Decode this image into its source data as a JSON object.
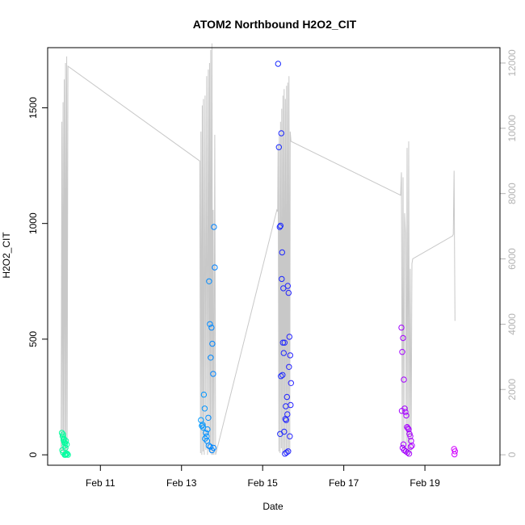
{
  "chart_data": {
    "type": "scatter",
    "title": "ATOM2 Northbound H2O2_CIT",
    "xlabel": "Date",
    "ylabel": "H2O2_CIT",
    "x_ticks": [
      "Feb 11",
      "Feb 13",
      "Feb 15",
      "Feb 17",
      "Feb 19"
    ],
    "y_ticks": [
      "0",
      "500",
      "1000",
      "1500"
    ],
    "y2_ticks": [
      "0",
      "2000",
      "4000",
      "6000",
      "8000",
      "10000",
      "12000"
    ],
    "xlim": [
      9.7,
      20.85
    ],
    "ylim": [
      -45,
      1760
    ],
    "y2lim": [
      -320,
      12470
    ],
    "colors": {
      "scatter_gradient": [
        "#00ff99",
        "#00e5ff",
        "#0033ff",
        "#7a00ff",
        "#d400ff"
      ],
      "altitude_line": "#c8c8c8",
      "right_axis": "#b3b3b3"
    },
    "series": [
      {
        "x": [
          10.05,
          10.07,
          10.09,
          10.11,
          10.13,
          10.15,
          10.17,
          10.06,
          10.08,
          10.12,
          10.14,
          10.16,
          10.08,
          10.1,
          10.12,
          10.14,
          10.18,
          10.2
        ],
        "y": [
          95,
          80,
          65,
          55,
          50,
          60,
          45,
          20,
          10,
          0,
          0,
          2,
          88,
          70,
          40,
          30,
          5,
          0
        ]
      },
      {
        "x": [
          13.48,
          13.5,
          13.52,
          13.55,
          13.57,
          13.6,
          13.62,
          13.64,
          13.66,
          13.68,
          13.7,
          13.72,
          13.74,
          13.76,
          13.78,
          13.8,
          13.82,
          13.53,
          13.58,
          13.63,
          13.67,
          13.71,
          13.75,
          13.79
        ],
        "y": [
          150,
          125,
          130,
          260,
          200,
          95,
          80,
          110,
          160,
          750,
          565,
          420,
          550,
          480,
          350,
          985,
          810,
          118,
          70,
          60,
          40,
          35,
          20,
          30
        ]
      },
      {
        "x": [
          15.38,
          15.4,
          15.42,
          15.44,
          15.46,
          15.48,
          15.5,
          15.52,
          15.54,
          15.56,
          15.58,
          15.6,
          15.62,
          15.64,
          15.66,
          15.68,
          15.7,
          15.45,
          15.49,
          15.53,
          15.57,
          15.61,
          15.65,
          15.69,
          15.43,
          15.47,
          15.51,
          15.55,
          15.59,
          15.63,
          15.67
        ],
        "y": [
          1690,
          1330,
          985,
          990,
          1390,
          875,
          485,
          440,
          485,
          155,
          150,
          250,
          730,
          700,
          510,
          430,
          310,
          340,
          345,
          100,
          210,
          175,
          380,
          215,
          90,
          760,
          720,
          5,
          10,
          15,
          80
        ]
      },
      {
        "x": [
          18.42,
          18.44,
          18.46,
          18.48,
          18.5,
          18.52,
          18.54,
          18.56,
          18.58,
          18.6,
          18.62,
          18.64,
          18.66,
          18.68,
          18.45,
          18.49,
          18.53,
          18.57,
          18.61,
          18.65,
          18.43,
          18.47
        ],
        "y": [
          550,
          445,
          505,
          325,
          200,
          185,
          170,
          120,
          115,
          110,
          90,
          80,
          60,
          40,
          30,
          20,
          15,
          10,
          5,
          35,
          190,
          45
        ]
      },
      {
        "x": [
          19.72,
          19.74,
          19.73
        ],
        "y": [
          25,
          15,
          2
        ]
      }
    ],
    "altitude_line": {
      "x": [
        10.03,
        10.05,
        10.06,
        10.08,
        10.09,
        10.11,
        10.12,
        10.14,
        10.15,
        10.17,
        10.18,
        10.2,
        13.45,
        13.47,
        13.48,
        13.5,
        13.51,
        13.53,
        13.54,
        13.56,
        13.58,
        13.6,
        13.62,
        13.64,
        13.66,
        13.68,
        13.69,
        13.71,
        13.72,
        13.74,
        13.75,
        13.77,
        13.78,
        13.8,
        13.82,
        13.84,
        15.35,
        15.37,
        15.38,
        15.4,
        15.41,
        15.43,
        15.44,
        15.46,
        15.47,
        15.49,
        15.5,
        15.52,
        15.53,
        15.55,
        15.56,
        15.58,
        15.59,
        15.61,
        15.62,
        15.64,
        15.65,
        15.67,
        15.68,
        15.7,
        18.4,
        18.42,
        18.44,
        18.46,
        18.48,
        18.5,
        18.52,
        18.54,
        18.56,
        18.58,
        18.6,
        18.62,
        18.64,
        18.66,
        18.68,
        18.7,
        19.68,
        19.7,
        19.72,
        19.74
      ],
      "y": [
        0,
        10200,
        100,
        10800,
        50,
        11500,
        200,
        12000,
        0,
        12200,
        100,
        11900,
        9000,
        50,
        9900,
        0,
        10700,
        100,
        10900,
        0,
        11000,
        150,
        11600,
        0,
        11800,
        100,
        12000,
        50,
        12400,
        0,
        12600,
        0,
        7500,
        0,
        9800,
        0,
        7500,
        7450,
        9500,
        100,
        9800,
        50,
        10200,
        200,
        10600,
        0,
        11000,
        100,
        11200,
        50,
        10900,
        100,
        11300,
        0,
        11400,
        50,
        11600,
        100,
        9900,
        9600,
        7950,
        8650,
        200,
        8500,
        100,
        7400,
        6800,
        0,
        9400,
        0,
        9600,
        0,
        5700,
        50,
        5850,
        6000,
        6700,
        6750,
        8700,
        4100
      ]
    }
  }
}
